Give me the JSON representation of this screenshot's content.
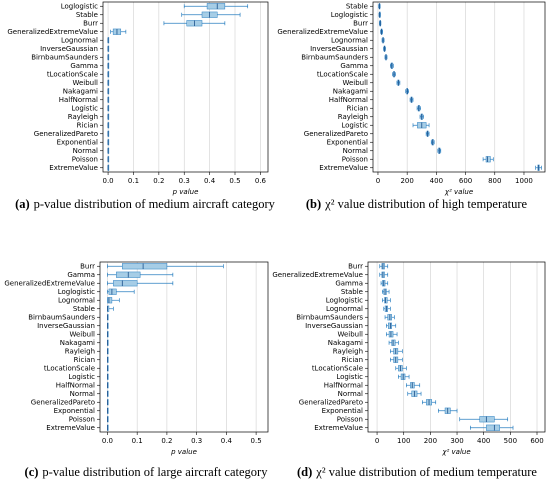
{
  "chart_data": [
    {
      "type": "box",
      "caption_label": "(a)",
      "caption": "p-value distribution of medium aircraft category",
      "xlabel": "p value",
      "categories": [
        "Loglogistic",
        "Stable",
        "Burr",
        "GeneralizedExtremeValue",
        "Lognormal",
        "InverseGaussian",
        "BirnbaumSaunders",
        "Gamma",
        "tLocationScale",
        "Weibull",
        "Nakagami",
        "HalfNormal",
        "Logistic",
        "Rayleigh",
        "Rician",
        "GeneralizedPareto",
        "Exponential",
        "Normal",
        "Poisson",
        "ExtremeValue"
      ],
      "whislo": [
        0.3,
        0.29,
        0.22,
        0.01,
        0,
        0,
        0,
        0,
        0,
        0,
        0,
        0,
        0,
        0,
        0,
        0,
        0,
        0,
        0,
        0
      ],
      "q1": [
        0.39,
        0.37,
        0.31,
        0.02,
        0,
        0,
        0,
        0,
        0,
        0,
        0,
        0,
        0,
        0,
        0,
        0,
        0,
        0,
        0,
        0
      ],
      "med": [
        0.43,
        0.4,
        0.34,
        0.035,
        0,
        0,
        0,
        0,
        0,
        0,
        0,
        0,
        0,
        0,
        0,
        0,
        0,
        0,
        0,
        0
      ],
      "q3": [
        0.46,
        0.43,
        0.37,
        0.05,
        0,
        0,
        0,
        0,
        0,
        0,
        0,
        0,
        0,
        0,
        0,
        0,
        0,
        0,
        0,
        0
      ],
      "whishi": [
        0.55,
        0.52,
        0.46,
        0.07,
        0,
        0,
        0,
        0,
        0,
        0,
        0,
        0,
        0,
        0,
        0,
        0,
        0,
        0,
        0,
        0
      ],
      "xlim": [
        -0.02,
        0.63
      ],
      "xticks": [
        {
          "value": 0,
          "label": "0.0"
        },
        0.1,
        0.2,
        0.3,
        0.4,
        0.5,
        0.6
      ],
      "grid": true,
      "color": "#a6cde6",
      "edge_color": "#2a7fc0"
    },
    {
      "type": "box",
      "caption_label": "(b)",
      "caption": "χ² value distribution of high temperature",
      "xlabel": "χ² value",
      "categories": [
        "Stable",
        "Loglogistic",
        "Burr",
        "GeneralizedExtremeValue",
        "Lognormal",
        "InverseGaussian",
        "BirnbaumSaunders",
        "Gamma",
        "tLocationScale",
        "Weibull",
        "Nakagami",
        "HalfNormal",
        "Rician",
        "Rayleigh",
        "Logistic",
        "GeneralizedPareto",
        "Exponential",
        "Normal",
        "Poisson",
        "ExtremeValue"
      ],
      "whislo": [
        5,
        7,
        10,
        18,
        28,
        38,
        48,
        85,
        100,
        130,
        190,
        220,
        268,
        288,
        240,
        330,
        365,
        410,
        720,
        1080
      ],
      "q1": [
        8,
        10,
        13,
        22,
        32,
        42,
        52,
        90,
        106,
        136,
        196,
        226,
        275,
        295,
        270,
        336,
        370,
        415,
        740,
        1095
      ],
      "med": [
        10,
        12,
        15,
        25,
        35,
        45,
        55,
        95,
        110,
        140,
        200,
        230,
        280,
        300,
        300,
        340,
        375,
        420,
        750,
        1100
      ],
      "q3": [
        12,
        14,
        17,
        28,
        38,
        48,
        58,
        100,
        114,
        144,
        204,
        234,
        285,
        305,
        330,
        344,
        380,
        425,
        770,
        1105
      ],
      "whishi": [
        15,
        17,
        20,
        32,
        42,
        52,
        62,
        105,
        120,
        150,
        210,
        240,
        292,
        312,
        350,
        350,
        385,
        430,
        790,
        1120
      ],
      "xlim": [
        -34,
        1144
      ],
      "xticks": [
        0,
        200,
        400,
        600,
        800,
        1000
      ],
      "grid": true,
      "color": "#a6cde6",
      "edge_color": "#2a7fc0"
    },
    {
      "type": "box",
      "caption_label": "(c)",
      "caption": "p-value distribution of large aircraft category",
      "xlabel": "p value",
      "categories": [
        "Burr",
        "Gamma",
        "GeneralizedExtremeValue",
        "Loglogistic",
        "Lognormal",
        "Stable",
        "BirnbaumSaunders",
        "InverseGaussian",
        "Weibull",
        "Nakagami",
        "Rayleigh",
        "Rician",
        "tLocationScale",
        "Logistic",
        "HalfNormal",
        "Normal",
        "GeneralizedPareto",
        "Exponential",
        "Poisson",
        "ExtremeValue"
      ],
      "whislo": [
        0,
        0,
        0,
        0,
        0,
        0,
        0,
        0,
        0,
        0,
        0,
        0,
        0,
        0,
        0,
        0,
        0,
        0,
        0,
        0
      ],
      "q1": [
        0.05,
        0.03,
        0.02,
        0.005,
        0,
        0,
        0,
        0,
        0,
        0,
        0,
        0,
        0,
        0,
        0,
        0,
        0,
        0,
        0,
        0
      ],
      "med": [
        0.12,
        0.07,
        0.05,
        0.015,
        0.005,
        0,
        0,
        0,
        0,
        0,
        0,
        0,
        0,
        0,
        0,
        0,
        0,
        0,
        0,
        0
      ],
      "q3": [
        0.2,
        0.11,
        0.1,
        0.03,
        0.015,
        0.005,
        0,
        0,
        0,
        0,
        0,
        0,
        0,
        0,
        0,
        0,
        0,
        0,
        0,
        0
      ],
      "whishi": [
        0.39,
        0.22,
        0.22,
        0.09,
        0.04,
        0.02,
        0,
        0,
        0,
        0,
        0,
        0,
        0,
        0,
        0,
        0,
        0,
        0,
        0,
        0
      ],
      "xlim": [
        -0.025,
        0.54
      ],
      "xticks": [
        {
          "value": 0,
          "label": "0.0"
        },
        0.1,
        0.2,
        0.3,
        0.4,
        0.5
      ],
      "grid": true,
      "color": "#a6cde6",
      "edge_color": "#2a7fc0"
    },
    {
      "type": "box",
      "caption_label": "(d)",
      "caption": "χ² value distribution of medium temperature",
      "xlabel": "χ² value",
      "categories": [
        "Burr",
        "GeneralizedExtremeValue",
        "Gamma",
        "Stable",
        "Loglogistic",
        "Lognormal",
        "BirnbaumSaunders",
        "InverseGaussian",
        "Weibull",
        "Nakagami",
        "Rayleigh",
        "Rician",
        "tLocationScale",
        "Logistic",
        "HalfNormal",
        "Normal",
        "GeneralizedPareto",
        "Exponential",
        "Poisson",
        "ExtremeValue"
      ],
      "whislo": [
        10,
        10,
        15,
        20,
        20,
        25,
        30,
        35,
        35,
        45,
        50,
        50,
        70,
        80,
        110,
        115,
        170,
        230,
        310,
        350
      ],
      "q1": [
        18,
        18,
        20,
        25,
        28,
        30,
        40,
        42,
        45,
        55,
        62,
        62,
        80,
        90,
        125,
        130,
        185,
        255,
        385,
        410
      ],
      "med": [
        22,
        22,
        25,
        30,
        32,
        35,
        48,
        50,
        52,
        60,
        70,
        70,
        88,
        98,
        132,
        140,
        195,
        265,
        410,
        440
      ],
      "q3": [
        28,
        28,
        30,
        35,
        38,
        40,
        55,
        55,
        60,
        68,
        78,
        78,
        95,
        105,
        140,
        150,
        205,
        275,
        440,
        460
      ],
      "whishi": [
        40,
        40,
        40,
        45,
        50,
        50,
        65,
        70,
        75,
        80,
        95,
        95,
        110,
        120,
        160,
        165,
        220,
        300,
        490,
        510
      ],
      "xlim": [
        -34,
        630
      ],
      "xticks": [
        0,
        100,
        200,
        300,
        400,
        500,
        600
      ],
      "grid": true,
      "color": "#a6cde6",
      "edge_color": "#2a7fc0"
    }
  ]
}
